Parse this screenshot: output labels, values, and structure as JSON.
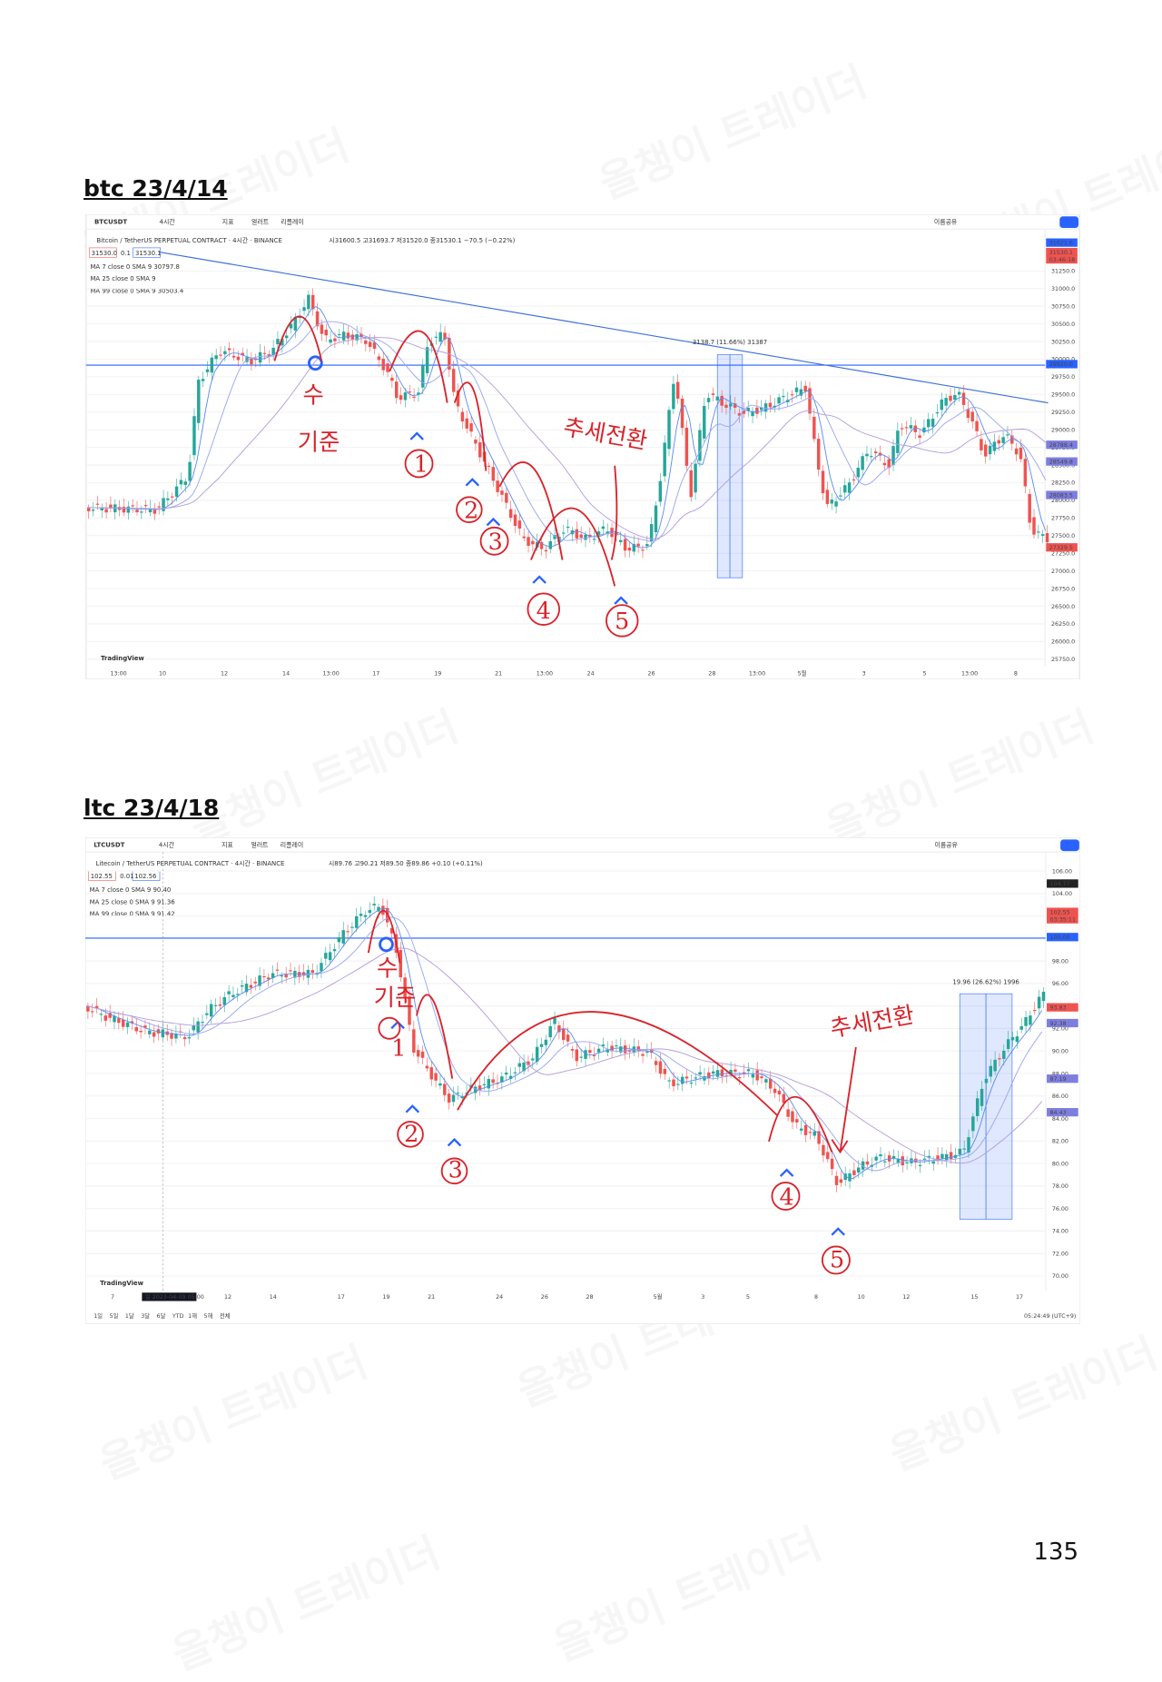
{
  "page": {
    "number": "135",
    "watermark": "올챙이 트레이더"
  },
  "sections": [
    {
      "heading": "btc 23/4/14",
      "chart": {
        "symbol": "BTCUSDT",
        "interval": "4시간",
        "toolbar": [
          "지표",
          "얼러트",
          "리플레이"
        ],
        "compare": "이름공유",
        "title": "Bitcoin / TetherUS PERPETUAL CONTRACT · 4시간 · BINANCE",
        "ohlc": "시31600.5 고31693.7 저31520.0 종31530.1 −70.5 (−0.22%)",
        "price_inputs": [
          "31530.0",
          "0.1",
          "31530.1"
        ],
        "indicators": [
          "MA 7 close 0 SMA 9 30797.8",
          "MA 25 close 0 SMA 9",
          "MA 99 close 0 SMA 9 30503.4"
        ],
        "price_axis": [
          "31250.0",
          "31000.0",
          "30750.0",
          "30500.0",
          "30250.0",
          "30000.0",
          "29750.0",
          "29500.0",
          "29250.0",
          "29000.0",
          "28750.0",
          "28500.0",
          "28250.0",
          "28000.0",
          "27750.0",
          "27500.0",
          "27250.0",
          "27000.0",
          "26750.0",
          "26500.0",
          "26250.0",
          "26000.0",
          "25750.0"
        ],
        "price_tags": [
          "31621.6",
          "31530.1",
          "03:46:18",
          "29920.0",
          "28788.4",
          "28549.8",
          "28083.5",
          "27329.5"
        ],
        "time_axis": [
          "13:00",
          "10",
          "12",
          "14",
          "13:00",
          "17",
          "19",
          "21",
          "13:00",
          "24",
          "26",
          "28",
          "13:00",
          "5월",
          "3",
          "5",
          "13:00",
          "8"
        ],
        "measure": "3138.7 (11.66%) 31387",
        "brand": "TradingView",
        "annotations": [
          "수",
          "기준",
          "추세전환",
          "1",
          "2",
          "3",
          "4",
          "5"
        ]
      }
    },
    {
      "heading": "ltc 23/4/18",
      "chart": {
        "symbol": "LTCUSDT",
        "interval": "4시간",
        "toolbar": [
          "지표",
          "얼러트",
          "리플레이"
        ],
        "compare": "이름공유",
        "title": "Litecoin / TetherUS PERPETUAL CONTRACT · 4시간 · BINANCE",
        "ohlc": "시89.76 고90.21 저89.50 종89.86 +0.10 (+0.11%)",
        "price_inputs": [
          "102.55",
          "0.01",
          "102.56"
        ],
        "indicators": [
          "MA 7 close 0 SMA 9 90.40",
          "MA 25 close 0 SMA 9 91.36",
          "MA 99 close 0 SMA 9 91.42"
        ],
        "price_axis": [
          "106.00",
          "104.00",
          "102.00",
          "100.00",
          "98.00",
          "96.00",
          "94.00",
          "92.00",
          "90.00",
          "88.00",
          "86.00",
          "84.00",
          "82.00",
          "80.00",
          "78.00",
          "76.00",
          "74.00",
          "72.00",
          "70.00"
        ],
        "price_tags": [
          "104.77",
          "102.55",
          "03:35:11",
          "100.00",
          "93.83",
          "92.38",
          "87.19",
          "84.43"
        ],
        "time_axis": [
          "7",
          "12",
          "14",
          "17",
          "19",
          "21",
          "24",
          "26",
          "28",
          "5월",
          "3",
          "5",
          "8",
          "10",
          "12",
          "15",
          "17"
        ],
        "time_cursor": "일 2023-04-09  05:00",
        "ranges": [
          "1일",
          "5일",
          "1달",
          "3달",
          "6달",
          "YTD",
          "1해",
          "5해",
          "전체"
        ],
        "clock": "05:24:49 (UTC+9)",
        "measure": "19.96 (26.62%) 1996",
        "brand": "TradingView",
        "annotations": [
          "수",
          "기준",
          "추세전환",
          "1",
          "2",
          "3",
          "4",
          "5"
        ]
      }
    }
  ]
}
